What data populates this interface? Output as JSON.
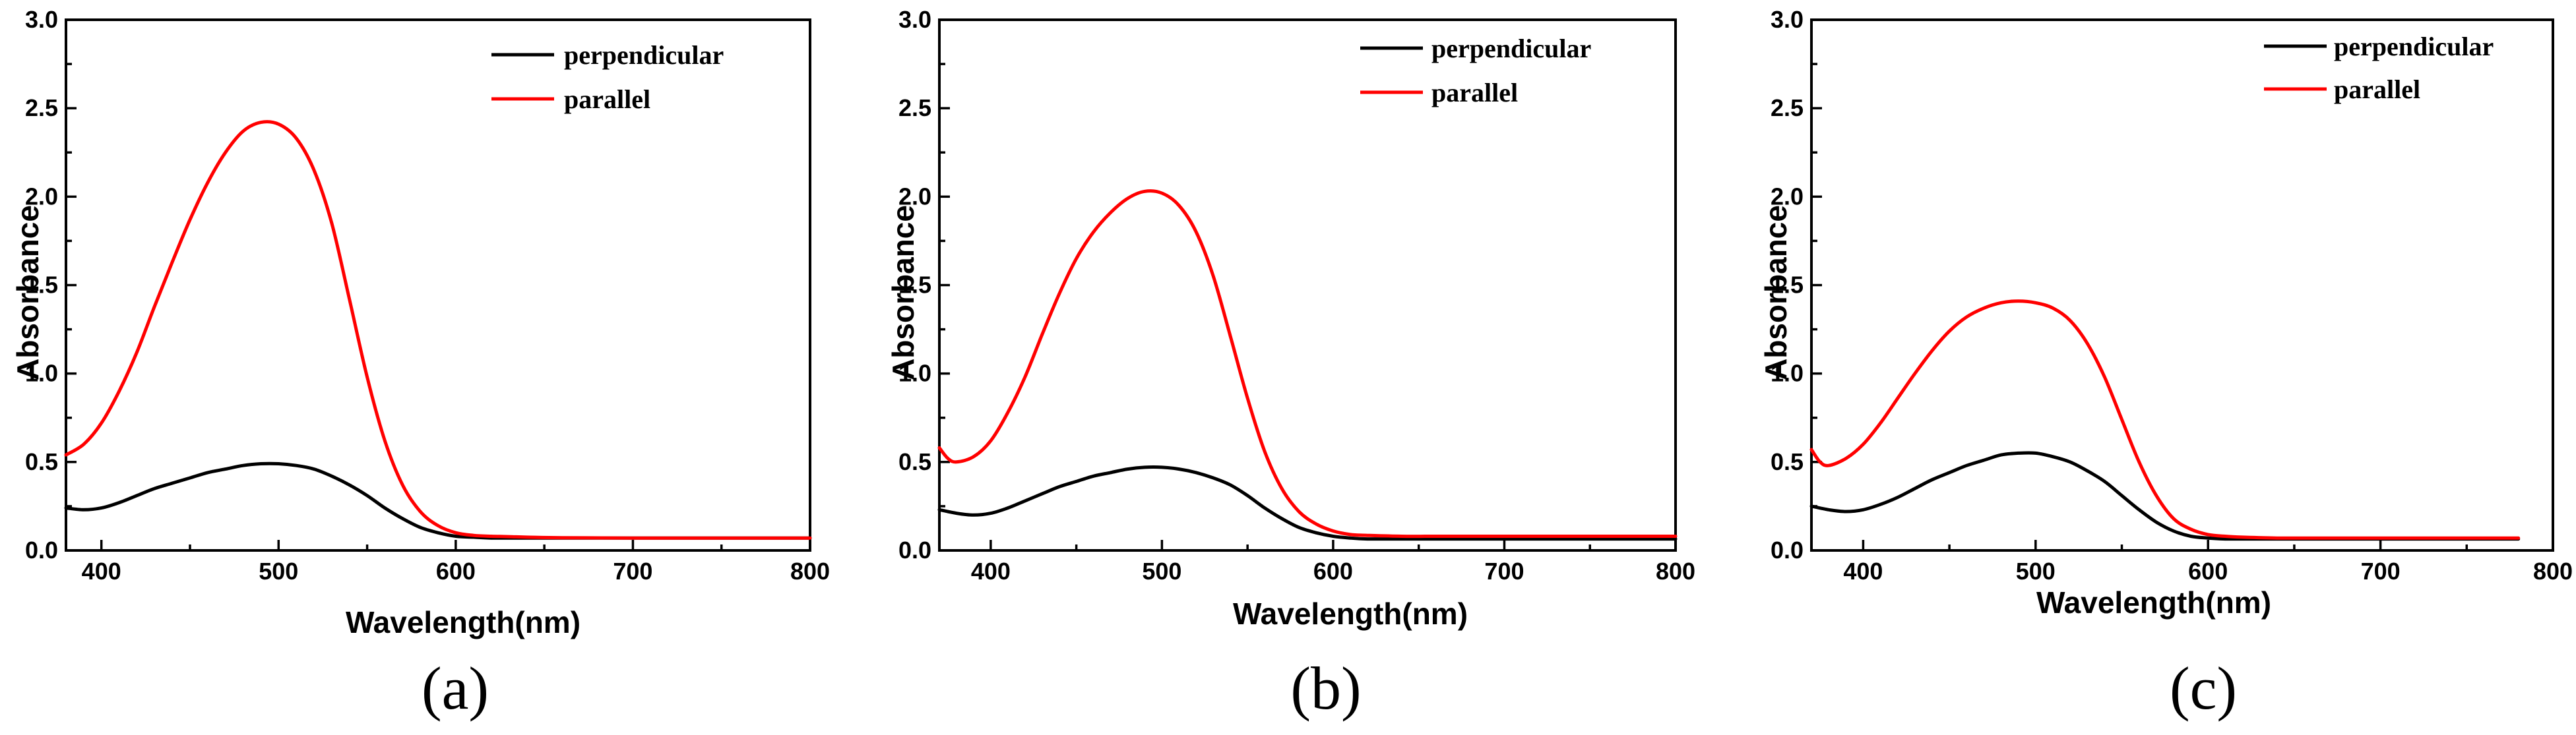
{
  "figure": {
    "panels": [
      {
        "caption": "(a)"
      },
      {
        "caption": "(b)"
      },
      {
        "caption": "(c)"
      }
    ]
  },
  "colors": {
    "perpendicular": "#000000",
    "parallel": "#ff0000"
  },
  "chart_data": [
    {
      "type": "line",
      "panel": "(a)",
      "xlabel": "Wavelength(nm)",
      "ylabel": "Absorbance",
      "xlim": [
        380,
        800
      ],
      "ylim": [
        0,
        3
      ],
      "xticks": [
        400,
        500,
        600,
        700,
        800
      ],
      "yticks": [
        0.0,
        0.5,
        1.0,
        1.5,
        2.0,
        2.5,
        3.0
      ],
      "xtick_labels": [
        "400",
        "500",
        "600",
        "700",
        "800"
      ],
      "ytick_labels": [
        "0.0",
        "0.5",
        "1.0",
        "1.5",
        "2.0",
        "2.5",
        "3.0"
      ],
      "legend_position": "top-right",
      "series": [
        {
          "name": "perpendicular",
          "color": "#000000",
          "x": [
            380,
            390,
            400,
            410,
            420,
            430,
            440,
            450,
            460,
            470,
            480,
            490,
            500,
            510,
            520,
            530,
            540,
            550,
            560,
            570,
            580,
            590,
            600,
            610,
            620,
            640,
            660,
            700,
            750,
            800
          ],
          "y": [
            0.24,
            0.23,
            0.24,
            0.27,
            0.31,
            0.35,
            0.38,
            0.41,
            0.44,
            0.46,
            0.48,
            0.49,
            0.49,
            0.48,
            0.46,
            0.42,
            0.37,
            0.31,
            0.24,
            0.18,
            0.13,
            0.1,
            0.08,
            0.075,
            0.07,
            0.07,
            0.07,
            0.07,
            0.07,
            0.07
          ]
        },
        {
          "name": "parallel",
          "color": "#ff0000",
          "x": [
            380,
            390,
            400,
            410,
            420,
            430,
            440,
            450,
            460,
            470,
            480,
            490,
            500,
            510,
            520,
            530,
            540,
            550,
            560,
            570,
            580,
            590,
            600,
            610,
            620,
            630,
            640,
            660,
            700,
            750,
            800
          ],
          "y": [
            0.54,
            0.6,
            0.72,
            0.9,
            1.12,
            1.38,
            1.63,
            1.87,
            2.08,
            2.25,
            2.37,
            2.42,
            2.41,
            2.33,
            2.15,
            1.85,
            1.42,
            0.98,
            0.62,
            0.37,
            0.22,
            0.14,
            0.1,
            0.085,
            0.08,
            0.078,
            0.075,
            0.072,
            0.07,
            0.07,
            0.07
          ]
        }
      ]
    },
    {
      "type": "line",
      "panel": "(b)",
      "xlabel": "Wavelength(nm)",
      "ylabel": "Absorbance",
      "xlim": [
        370,
        800
      ],
      "ylim": [
        0,
        3
      ],
      "xticks": [
        400,
        500,
        600,
        700,
        800
      ],
      "yticks": [
        0.0,
        0.5,
        1.0,
        1.5,
        2.0,
        2.5,
        3.0
      ],
      "xtick_labels": [
        "400",
        "500",
        "600",
        "700",
        "800"
      ],
      "ytick_labels": [
        "0.0",
        "0.5",
        "1.0",
        "1.5",
        "2.0",
        "2.5",
        "3.0"
      ],
      "legend_position": "top-right",
      "series": [
        {
          "name": "perpendicular",
          "color": "#000000",
          "x": [
            370,
            380,
            390,
            400,
            410,
            420,
            430,
            440,
            450,
            460,
            470,
            480,
            490,
            500,
            510,
            520,
            530,
            540,
            550,
            560,
            570,
            580,
            590,
            600,
            610,
            620,
            640,
            660,
            700,
            750,
            800
          ],
          "y": [
            0.23,
            0.21,
            0.2,
            0.21,
            0.24,
            0.28,
            0.32,
            0.36,
            0.39,
            0.42,
            0.44,
            0.46,
            0.47,
            0.47,
            0.46,
            0.44,
            0.41,
            0.37,
            0.31,
            0.24,
            0.18,
            0.13,
            0.1,
            0.08,
            0.07,
            0.065,
            0.065,
            0.065,
            0.065,
            0.065,
            0.065
          ]
        },
        {
          "name": "parallel",
          "color": "#ff0000",
          "x": [
            370,
            375,
            380,
            390,
            400,
            410,
            420,
            430,
            440,
            450,
            460,
            470,
            480,
            490,
            500,
            510,
            520,
            530,
            540,
            550,
            560,
            570,
            580,
            590,
            600,
            610,
            620,
            640,
            660,
            700,
            750,
            800
          ],
          "y": [
            0.58,
            0.52,
            0.5,
            0.53,
            0.62,
            0.78,
            0.98,
            1.22,
            1.45,
            1.65,
            1.8,
            1.91,
            1.99,
            2.03,
            2.02,
            1.95,
            1.8,
            1.55,
            1.21,
            0.86,
            0.56,
            0.35,
            0.22,
            0.15,
            0.11,
            0.09,
            0.085,
            0.08,
            0.08,
            0.08,
            0.08,
            0.08
          ]
        }
      ]
    },
    {
      "type": "line",
      "panel": "(c)",
      "xlabel": "Wavelength(nm)",
      "ylabel": "Absorbance",
      "xlim": [
        370,
        800
      ],
      "ylim": [
        0,
        3
      ],
      "xticks": [
        400,
        500,
        600,
        700,
        800
      ],
      "yticks": [
        0.0,
        0.5,
        1.0,
        1.5,
        2.0,
        2.5,
        3.0
      ],
      "xtick_labels": [
        "400",
        "500",
        "600",
        "700",
        "800"
      ],
      "ytick_labels": [
        "0.0",
        "0.5",
        "1.0",
        "1.5",
        "2.0",
        "2.5",
        "3.0"
      ],
      "legend_position": "top-right",
      "series": [
        {
          "name": "perpendicular",
          "color": "#000000",
          "x": [
            370,
            380,
            390,
            400,
            410,
            420,
            430,
            440,
            450,
            460,
            470,
            480,
            490,
            500,
            510,
            520,
            530,
            540,
            550,
            560,
            570,
            580,
            590,
            600,
            610,
            620,
            640,
            660,
            700,
            780
          ],
          "y": [
            0.25,
            0.23,
            0.22,
            0.23,
            0.26,
            0.3,
            0.35,
            0.4,
            0.44,
            0.48,
            0.51,
            0.54,
            0.55,
            0.55,
            0.53,
            0.5,
            0.45,
            0.39,
            0.31,
            0.23,
            0.16,
            0.11,
            0.08,
            0.07,
            0.065,
            0.065,
            0.065,
            0.065,
            0.065,
            0.065
          ]
        },
        {
          "name": "parallel",
          "color": "#ff0000",
          "x": [
            370,
            375,
            380,
            390,
            400,
            410,
            420,
            430,
            440,
            450,
            460,
            470,
            480,
            490,
            500,
            510,
            520,
            530,
            540,
            550,
            560,
            570,
            580,
            590,
            600,
            610,
            620,
            640,
            660,
            700,
            780
          ],
          "y": [
            0.57,
            0.5,
            0.48,
            0.52,
            0.6,
            0.72,
            0.86,
            1.0,
            1.13,
            1.24,
            1.32,
            1.37,
            1.4,
            1.41,
            1.4,
            1.37,
            1.3,
            1.17,
            0.98,
            0.74,
            0.5,
            0.31,
            0.18,
            0.12,
            0.09,
            0.08,
            0.075,
            0.07,
            0.07,
            0.07,
            0.07
          ]
        }
      ]
    }
  ]
}
